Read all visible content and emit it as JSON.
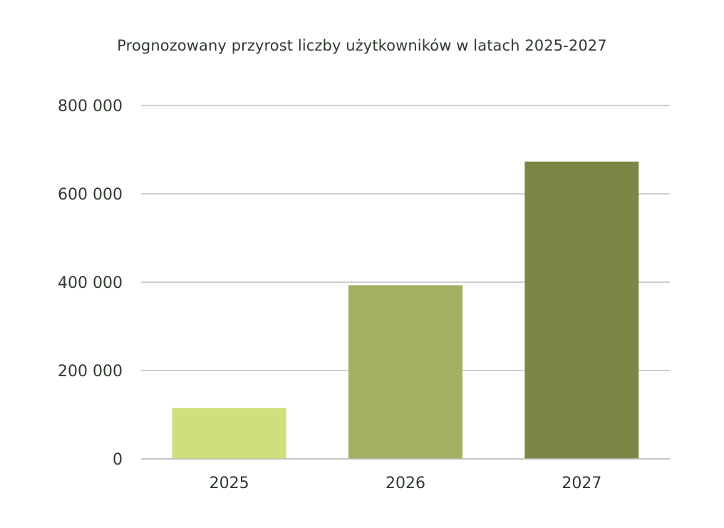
{
  "chart_data": {
    "type": "bar",
    "title": "Prognozowany przyrost liczby użytkowników w latach 2025-2027",
    "xlabel": "",
    "ylabel": "",
    "categories": [
      "2025",
      "2026",
      "2027"
    ],
    "values": [
      115000,
      393000,
      673000
    ],
    "ylim": [
      0,
      800000
    ],
    "yticks": [
      0,
      200000,
      400000,
      600000,
      800000
    ],
    "ytick_labels": [
      "0",
      "200 000",
      "400 000",
      "600 000",
      "800 000"
    ],
    "grid": true,
    "legend": "none",
    "colors": [
      "#cfe07a",
      "#a3b05f",
      "#7b8747"
    ],
    "grid_color": "#bdbdbd"
  }
}
